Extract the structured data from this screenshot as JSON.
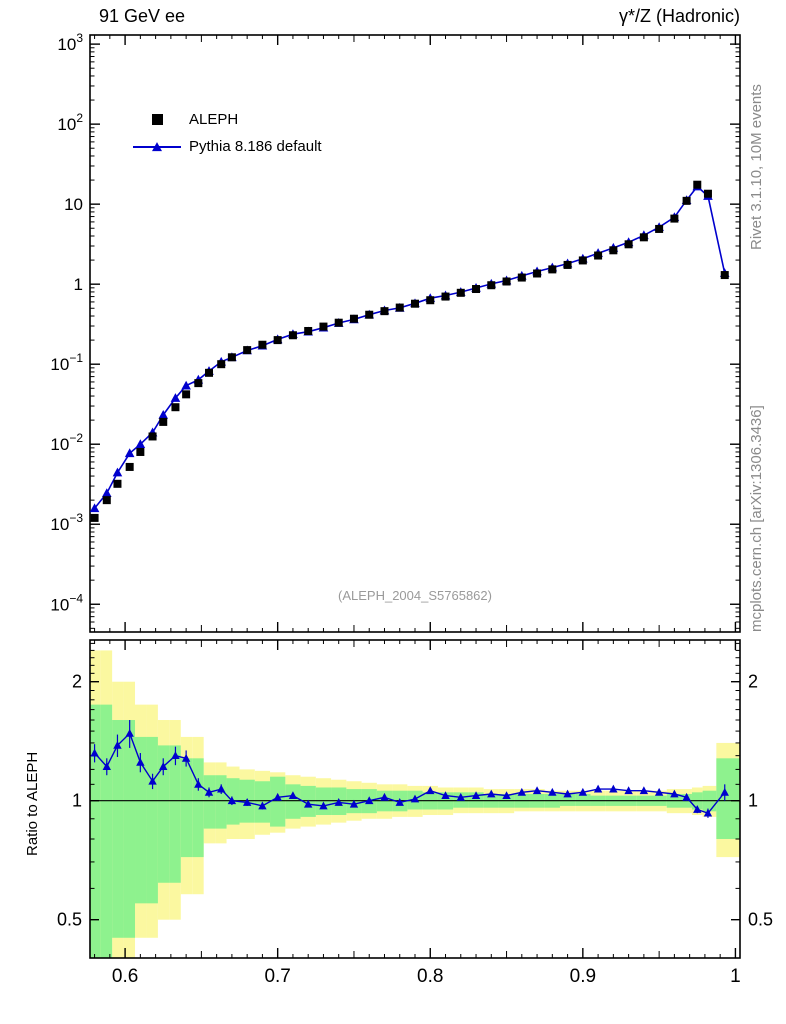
{
  "header": {
    "title_left": "91 GeV ee",
    "title_right": "γ*/Z (Hadronic)"
  },
  "side_notes": {
    "top": "Rivet 3.1.10, 10M events",
    "bottom": "mcplots.cern.ch [arXiv:1306.3436]"
  },
  "watermark": "(ALEPH_2004_S5765862)",
  "legend": [
    {
      "label": "ALEPH",
      "marker": "black-square"
    },
    {
      "label": "Pythia 8.186 default",
      "marker": "blue-triangle-line"
    }
  ],
  "colors": {
    "pythia_blue": "#0000cd",
    "band_yellow": "#fbf8a0",
    "band_green": "#8ef28e",
    "frame": "#000000",
    "gray_text": "#8a8a8a"
  },
  "chart_data": {
    "type": "line",
    "title": "91 GeV ee — γ*/Z (Hadronic)",
    "xlabel": "",
    "ylabel": "",
    "xlim": [
      0.577,
      1.003
    ],
    "ylog": true,
    "ylim": [
      4.5e-05,
      1300
    ],
    "xticks": [
      {
        "v": 0.6,
        "label": "0.6"
      },
      {
        "v": 0.7,
        "label": "0.7"
      },
      {
        "v": 0.8,
        "label": "0.8"
      },
      {
        "v": 0.9,
        "label": "0.9"
      },
      {
        "v": 1.0,
        "label": "1"
      }
    ],
    "yticks": [
      {
        "v": 1000,
        "base": "10",
        "exp": "3"
      },
      {
        "v": 100,
        "base": "10",
        "exp": "2"
      },
      {
        "v": 10,
        "base": "10",
        "exp": ""
      },
      {
        "v": 1,
        "base": "1",
        "exp": ""
      },
      {
        "v": 0.1,
        "base": "10",
        "exp": "−1"
      },
      {
        "v": 0.01,
        "base": "10",
        "exp": "−2"
      },
      {
        "v": 0.001,
        "base": "10",
        "exp": "−3"
      },
      {
        "v": 0.0001,
        "base": "10",
        "exp": "−4"
      }
    ],
    "x": [
      0.58,
      0.588,
      0.595,
      0.603,
      0.61,
      0.618,
      0.625,
      0.633,
      0.64,
      0.648,
      0.655,
      0.663,
      0.67,
      0.68,
      0.69,
      0.7,
      0.71,
      0.72,
      0.73,
      0.74,
      0.75,
      0.76,
      0.77,
      0.78,
      0.79,
      0.8,
      0.81,
      0.82,
      0.83,
      0.84,
      0.85,
      0.86,
      0.87,
      0.88,
      0.89,
      0.9,
      0.91,
      0.92,
      0.93,
      0.94,
      0.95,
      0.96,
      0.968,
      0.975,
      0.982,
      0.993
    ],
    "series": [
      {
        "name": "ALEPH",
        "marker": "square",
        "color": "#000000",
        "values": [
          0.0012,
          0.002,
          0.0032,
          0.0052,
          0.008,
          0.0125,
          0.019,
          0.029,
          0.042,
          0.058,
          0.078,
          0.1,
          0.122,
          0.15,
          0.175,
          0.2,
          0.23,
          0.26,
          0.295,
          0.33,
          0.37,
          0.415,
          0.46,
          0.51,
          0.57,
          0.63,
          0.7,
          0.78,
          0.87,
          0.97,
          1.08,
          1.21,
          1.36,
          1.53,
          1.74,
          1.98,
          2.28,
          2.65,
          3.15,
          3.85,
          4.9,
          6.6,
          11.0,
          17.5,
          13.5,
          1.3
        ]
      },
      {
        "name": "Pythia 8.186 default",
        "marker": "triangle",
        "color": "#0000cd",
        "values": [
          0.00158,
          0.00244,
          0.00442,
          0.0077,
          0.01,
          0.014,
          0.0232,
          0.0377,
          0.0538,
          0.0638,
          0.0819,
          0.107,
          0.122,
          0.1485,
          0.17,
          0.204,
          0.237,
          0.255,
          0.286,
          0.327,
          0.363,
          0.415,
          0.469,
          0.505,
          0.576,
          0.668,
          0.721,
          0.796,
          0.896,
          1.009,
          1.11,
          1.27,
          1.44,
          1.61,
          1.81,
          2.08,
          2.44,
          2.84,
          3.34,
          4.08,
          5.15,
          6.86,
          11.2,
          16.6,
          12.6,
          1.37
        ]
      }
    ],
    "ratio": {
      "ylabel": "Ratio to ALEPH",
      "ylog": true,
      "ylim": [
        0.4,
        2.55
      ],
      "yticks": [
        {
          "v": 0.5,
          "label": "0.5"
        },
        {
          "v": 1,
          "label": "1"
        },
        {
          "v": 2,
          "label": "2"
        }
      ],
      "values": [
        1.32,
        1.22,
        1.38,
        1.48,
        1.25,
        1.12,
        1.22,
        1.3,
        1.28,
        1.1,
        1.05,
        1.07,
        1.0,
        0.99,
        0.97,
        1.02,
        1.03,
        0.98,
        0.97,
        0.99,
        0.98,
        1.0,
        1.02,
        0.99,
        1.01,
        1.06,
        1.03,
        1.02,
        1.03,
        1.04,
        1.03,
        1.05,
        1.06,
        1.05,
        1.04,
        1.05,
        1.07,
        1.07,
        1.06,
        1.06,
        1.05,
        1.04,
        1.02,
        0.95,
        0.93,
        1.05
      ],
      "err": [
        0.07,
        0.06,
        0.09,
        0.12,
        0.07,
        0.05,
        0.06,
        0.07,
        0.06,
        0.04,
        0.03,
        0.03,
        0.025,
        0.02,
        0.02,
        0.02,
        0.015,
        0.015,
        0.015,
        0.015,
        0.012,
        0.012,
        0.012,
        0.012,
        0.012,
        0.012,
        0.012,
        0.012,
        0.012,
        0.012,
        0.012,
        0.012,
        0.012,
        0.012,
        0.012,
        0.012,
        0.012,
        0.013,
        0.013,
        0.014,
        0.015,
        0.015,
        0.02,
        0.02,
        0.025,
        0.05
      ],
      "band_yellow": [
        [
          0.3,
          2.4
        ],
        [
          0.3,
          2.4
        ],
        [
          0.35,
          2.0
        ],
        [
          0.35,
          2.0
        ],
        [
          0.45,
          1.75
        ],
        [
          0.45,
          1.75
        ],
        [
          0.5,
          1.6
        ],
        [
          0.5,
          1.6
        ],
        [
          0.58,
          1.45
        ],
        [
          0.58,
          1.45
        ],
        [
          0.78,
          1.25
        ],
        [
          0.78,
          1.25
        ],
        [
          0.8,
          1.22
        ],
        [
          0.8,
          1.2
        ],
        [
          0.82,
          1.19
        ],
        [
          0.83,
          1.18
        ],
        [
          0.85,
          1.16
        ],
        [
          0.86,
          1.15
        ],
        [
          0.87,
          1.14
        ],
        [
          0.88,
          1.13
        ],
        [
          0.89,
          1.12
        ],
        [
          0.9,
          1.11
        ],
        [
          0.9,
          1.1
        ],
        [
          0.91,
          1.1
        ],
        [
          0.91,
          1.09
        ],
        [
          0.92,
          1.09
        ],
        [
          0.92,
          1.08
        ],
        [
          0.93,
          1.08
        ],
        [
          0.93,
          1.08
        ],
        [
          0.93,
          1.07
        ],
        [
          0.93,
          1.07
        ],
        [
          0.94,
          1.07
        ],
        [
          0.94,
          1.07
        ],
        [
          0.94,
          1.06
        ],
        [
          0.94,
          1.06
        ],
        [
          0.94,
          1.06
        ],
        [
          0.94,
          1.06
        ],
        [
          0.94,
          1.06
        ],
        [
          0.94,
          1.06
        ],
        [
          0.94,
          1.06
        ],
        [
          0.94,
          1.06
        ],
        [
          0.93,
          1.07
        ],
        [
          0.93,
          1.07
        ],
        [
          0.92,
          1.08
        ],
        [
          0.91,
          1.09
        ],
        [
          0.72,
          1.4
        ]
      ],
      "band_green": [
        [
          0.3,
          1.75
        ],
        [
          0.3,
          1.75
        ],
        [
          0.45,
          1.6
        ],
        [
          0.45,
          1.6
        ],
        [
          0.55,
          1.45
        ],
        [
          0.55,
          1.45
        ],
        [
          0.62,
          1.38
        ],
        [
          0.62,
          1.38
        ],
        [
          0.72,
          1.28
        ],
        [
          0.72,
          1.28
        ],
        [
          0.85,
          1.16
        ],
        [
          0.85,
          1.16
        ],
        [
          0.87,
          1.14
        ],
        [
          0.88,
          1.13
        ],
        [
          0.88,
          1.12
        ],
        [
          0.86,
          1.15
        ],
        [
          0.9,
          1.1
        ],
        [
          0.91,
          1.09
        ],
        [
          0.92,
          1.08
        ],
        [
          0.92,
          1.08
        ],
        [
          0.93,
          1.07
        ],
        [
          0.93,
          1.07
        ],
        [
          0.94,
          1.06
        ],
        [
          0.94,
          1.06
        ],
        [
          0.95,
          1.06
        ],
        [
          0.95,
          1.05
        ],
        [
          0.95,
          1.05
        ],
        [
          0.96,
          1.05
        ],
        [
          0.96,
          1.05
        ],
        [
          0.96,
          1.04
        ],
        [
          0.96,
          1.04
        ],
        [
          0.96,
          1.04
        ],
        [
          0.96,
          1.04
        ],
        [
          0.96,
          1.04
        ],
        [
          0.97,
          1.04
        ],
        [
          0.97,
          1.04
        ],
        [
          0.97,
          1.03
        ],
        [
          0.97,
          1.03
        ],
        [
          0.97,
          1.03
        ],
        [
          0.97,
          1.03
        ],
        [
          0.97,
          1.03
        ],
        [
          0.96,
          1.04
        ],
        [
          0.96,
          1.04
        ],
        [
          0.95,
          1.05
        ],
        [
          0.94,
          1.06
        ],
        [
          0.8,
          1.28
        ]
      ]
    }
  }
}
